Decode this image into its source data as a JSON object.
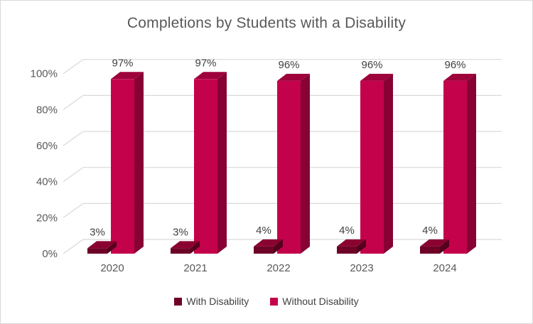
{
  "chart_data": {
    "type": "bar",
    "subtype": "3d-clustered-column",
    "title": "Completions by Students with a Disability",
    "xlabel": "",
    "ylabel": "",
    "categories": [
      "2020",
      "2021",
      "2022",
      "2023",
      "2024"
    ],
    "series": [
      {
        "name": "With Disability",
        "values": [
          3,
          3,
          4,
          4,
          4
        ],
        "labels": [
          "3%",
          "3%",
          "4%",
          "4%",
          "4%"
        ],
        "color": {
          "front": "#6E0126",
          "top": "#8A0230",
          "side": "#55001C"
        }
      },
      {
        "name": "Without Disability",
        "values": [
          97,
          97,
          96,
          96,
          96
        ],
        "labels": [
          "97%",
          "97%",
          "96%",
          "96%",
          "96%"
        ],
        "color": {
          "front": "#C4024B",
          "top": "#9E023B",
          "side": "#870134"
        }
      }
    ],
    "y_ticks": [
      "0%",
      "20%",
      "40%",
      "60%",
      "80%",
      "100%"
    ],
    "y_tick_values": [
      0,
      20,
      40,
      60,
      80,
      100
    ],
    "ylim": [
      0,
      100
    ],
    "grid": true,
    "legend_position": "bottom",
    "data_labels": true
  },
  "colors": {
    "grid": "#D9D9D9",
    "axis_text": "#595959",
    "data_label_text": "#404040",
    "title_text": "#595959",
    "background": "#FFFFFF",
    "border": "#D8D8D8"
  }
}
